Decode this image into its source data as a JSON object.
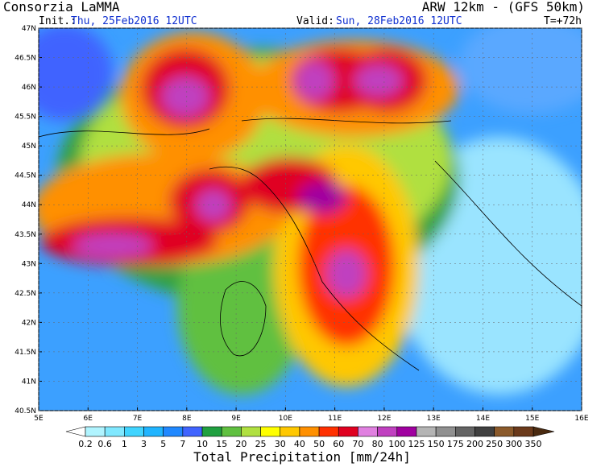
{
  "header": {
    "title": "Consorzia LaMMA",
    "model": "ARW 12km - (GFS 50km)",
    "init_label": "Init.:",
    "init_value": "Thu, 25Feb2016 12UTC",
    "valid_label": "Valid:",
    "valid_value": "Sun, 28Feb2016 12UTC",
    "lead": "T=+72h"
  },
  "map": {
    "lat_labels": [
      "47N",
      "46.5N",
      "46N",
      "45.5N",
      "45N",
      "44.5N",
      "44N",
      "43.5N",
      "43N",
      "42.5N",
      "42N",
      "41.5N",
      "41N",
      "40.5N"
    ],
    "lon_labels": [
      "5E",
      "6E",
      "7E",
      "8E",
      "9E",
      "10E",
      "11E",
      "12E",
      "13E",
      "14E",
      "15E",
      "16E"
    ]
  },
  "colorbar": {
    "levels": [
      0.2,
      0.6,
      1,
      3,
      5,
      7,
      10,
      15,
      20,
      25,
      30,
      40,
      50,
      60,
      70,
      80,
      100,
      125,
      150,
      175,
      200,
      250,
      300,
      350
    ],
    "colors": [
      "#b0f4ff",
      "#80e8ff",
      "#40d4ff",
      "#20b4ff",
      "#2088ff",
      "#4064ff",
      "#20a040",
      "#60c040",
      "#b0e040",
      "#ffff00",
      "#ffc800",
      "#ff9000",
      "#ff3000",
      "#e00020",
      "#e080e0",
      "#c040c0",
      "#a000a0",
      "#b4b4b4",
      "#909090",
      "#646464",
      "#404040",
      "#8b5a2b",
      "#6b3a1b"
    ],
    "caption": "Total Precipitation [mm/24h]"
  }
}
